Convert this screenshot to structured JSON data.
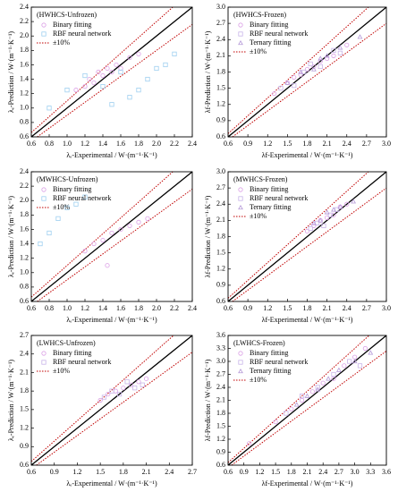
{
  "chart_data": [
    {
      "type": "scatter",
      "title": "(HWHCS-Unfrozen)",
      "xlabel": "λₑ-Experimental / W·(m⁻¹·K⁻¹)",
      "ylabel": "λₑ-Prediction / W·(m⁻¹·K⁻¹)",
      "xlim": [
        0.6,
        2.4
      ],
      "ylim": [
        0.6,
        2.4
      ],
      "xticks": [
        0.6,
        0.8,
        {
          "value": 1,
          "label": "1.0"
        },
        1.2,
        1.4,
        1.6,
        1.8,
        {
          "value": 2,
          "label": "2.0"
        },
        2.2,
        2.4
      ],
      "yticks": [
        0.6,
        0.8,
        {
          "value": 1,
          "label": "1.0"
        },
        1.2,
        1.4,
        1.6,
        1.8,
        {
          "value": 2,
          "label": "2.0"
        },
        2.2,
        2.4
      ],
      "band": {
        "name": "±10%",
        "value": 10,
        "color": "#c00000"
      },
      "series": [
        {
          "name": "Binary fitting",
          "color": "#dba0e6",
          "marker": "circle",
          "x": [
            1.1,
            1.2,
            1.25,
            1.3,
            1.35,
            1.4,
            1.45,
            1.5,
            1.55,
            1.6,
            1.7,
            1.8
          ],
          "y": [
            1.25,
            1.3,
            1.4,
            1.35,
            1.5,
            1.45,
            1.55,
            1.5,
            1.6,
            1.55,
            1.7,
            1.75
          ]
        },
        {
          "name": "RBF neural network",
          "color": "#9ecff0",
          "marker": "square",
          "x": [
            0.8,
            1.0,
            1.2,
            1.4,
            1.6,
            1.8,
            2.0,
            2.2,
            1.5,
            1.7,
            1.9,
            2.1
          ],
          "y": [
            1.0,
            1.25,
            1.45,
            1.3,
            1.5,
            1.25,
            1.55,
            1.75,
            1.05,
            1.15,
            1.4,
            1.6
          ]
        }
      ]
    },
    {
      "type": "scatter",
      "title": "(HWHCS-Frozen)",
      "xlabel": "λf-Experimental / W·(m⁻¹·K⁻¹)",
      "ylabel": "λf-Prediction / W·(m⁻¹·K⁻¹)",
      "xlim": [
        0.6,
        3.0
      ],
      "ylim": [
        0.6,
        3.0
      ],
      "xticks": [
        0.6,
        0.9,
        1.2,
        1.5,
        1.8,
        2.1,
        2.4,
        2.7,
        {
          "value": 3,
          "label": "3.0"
        }
      ],
      "yticks": [
        0.6,
        0.9,
        1.2,
        1.5,
        1.8,
        2.1,
        2.4,
        2.7,
        {
          "value": 3,
          "label": "3.0"
        }
      ],
      "band": {
        "name": "±10%",
        "value": 10,
        "color": "#c00000"
      },
      "series": [
        {
          "name": "Binary fitting",
          "color": "#dba0e6",
          "marker": "circle",
          "x": [
            1.3,
            1.5,
            1.6,
            1.7,
            1.8,
            1.9,
            2.0,
            2.1,
            2.2,
            2.4
          ],
          "y": [
            1.4,
            1.6,
            1.7,
            1.75,
            1.85,
            1.9,
            2.0,
            2.05,
            2.1,
            2.3
          ]
        },
        {
          "name": "RBF neural network",
          "color": "#c9b4e8",
          "marker": "square",
          "x": [
            1.4,
            1.6,
            1.75,
            1.85,
            2.0,
            2.2,
            2.3
          ],
          "y": [
            1.5,
            1.55,
            1.8,
            1.95,
            1.9,
            2.2,
            2.15
          ]
        },
        {
          "name": "Ternary fitting",
          "color": "#b59ad8",
          "marker": "triangle",
          "x": [
            1.5,
            1.7,
            1.9,
            2.0,
            2.1,
            2.3,
            2.6
          ],
          "y": [
            1.6,
            1.8,
            1.85,
            2.05,
            2.1,
            2.25,
            2.45
          ]
        }
      ]
    },
    {
      "type": "scatter",
      "title": "(MWHCS-Unfrozen)",
      "xlabel": "λₑ-Experimental / W·(m⁻¹·K⁻¹)",
      "ylabel": "λₑ-Prediction / W·(m⁻¹·K⁻¹)",
      "xlim": [
        0.6,
        2.4
      ],
      "ylim": [
        0.6,
        2.4
      ],
      "xticks": [
        0.6,
        0.8,
        {
          "value": 1,
          "label": "1.0"
        },
        1.2,
        1.4,
        1.6,
        1.8,
        {
          "value": 2,
          "label": "2.0"
        },
        2.2,
        2.4
      ],
      "yticks": [
        0.6,
        0.8,
        {
          "value": 1,
          "label": "1.0"
        },
        1.2,
        1.4,
        1.6,
        1.8,
        {
          "value": 2,
          "label": "2.0"
        },
        2.2,
        2.4
      ],
      "band": {
        "name": "±10%",
        "value": 10,
        "color": "#c00000"
      },
      "series": [
        {
          "name": "Binary fitting",
          "color": "#dba0e6",
          "marker": "circle",
          "x": [
            1.2,
            1.3,
            1.4,
            1.5,
            1.6,
            1.7,
            1.8,
            1.9,
            1.45
          ],
          "y": [
            1.3,
            1.4,
            1.45,
            1.55,
            1.6,
            1.65,
            1.7,
            1.75,
            1.1
          ]
        },
        {
          "name": "RBF neural network",
          "color": "#9ecff0",
          "marker": "square",
          "x": [
            0.7,
            0.8,
            0.9,
            1.0,
            1.1,
            1.2
          ],
          "y": [
            1.4,
            1.55,
            1.75,
            1.9,
            1.95,
            2.05
          ]
        }
      ]
    },
    {
      "type": "scatter",
      "title": "(MWHCS-Frozen)",
      "xlabel": "λf-Experimental / W·(m⁻¹·K⁻¹)",
      "ylabel": "λf-Prediction / W·(m⁻¹·K⁻¹)",
      "xlim": [
        0.6,
        3.0
      ],
      "ylim": [
        0.6,
        3.0
      ],
      "xticks": [
        0.6,
        0.9,
        1.2,
        1.5,
        1.8,
        2.1,
        2.4,
        2.7,
        {
          "value": 3,
          "label": "3.0"
        }
      ],
      "yticks": [
        0.6,
        0.9,
        1.2,
        1.5,
        1.8,
        2.1,
        2.4,
        2.7,
        {
          "value": 3,
          "label": "3.0"
        }
      ],
      "band": {
        "name": "±10%",
        "value": 10,
        "color": "#c00000"
      },
      "series": [
        {
          "name": "Binary fitting",
          "color": "#dba0e6",
          "marker": "circle",
          "x": [
            1.8,
            1.9,
            2.0,
            2.1,
            2.2,
            2.3,
            2.4
          ],
          "y": [
            1.9,
            2.0,
            2.1,
            2.15,
            2.2,
            2.35,
            2.4
          ]
        },
        {
          "name": "RBF neural network",
          "color": "#c9b4e8",
          "marker": "square",
          "x": [
            1.85,
            1.95,
            2.05,
            2.15,
            2.25
          ],
          "y": [
            1.95,
            2.05,
            2.0,
            2.2,
            2.3
          ]
        },
        {
          "name": "Ternary fitting",
          "color": "#b59ad8",
          "marker": "triangle",
          "x": [
            1.9,
            2.0,
            2.1,
            2.2,
            2.3,
            2.5
          ],
          "y": [
            2.05,
            2.1,
            2.25,
            2.3,
            2.35,
            2.45
          ]
        }
      ]
    },
    {
      "type": "scatter",
      "title": "(LWHCS-Unfrozen)",
      "xlabel": "λₑ-Experimental / W·(m⁻¹·K⁻¹)",
      "ylabel": "λₑ-Prediction / W·(m⁻¹·K⁻¹)",
      "xlim": [
        0.6,
        2.7
      ],
      "ylim": [
        0.6,
        2.7
      ],
      "xticks": [
        0.6,
        0.9,
        1.2,
        1.5,
        1.8,
        2.1,
        2.4,
        2.7
      ],
      "yticks": [
        0.6,
        0.9,
        1.2,
        1.5,
        1.8,
        2.1,
        2.4,
        2.7
      ],
      "band": {
        "name": "±10%",
        "value": 10,
        "color": "#c00000"
      },
      "series": [
        {
          "name": "Binary fitting",
          "color": "#dba0e6",
          "marker": "circle",
          "x": [
            1.5,
            1.6,
            1.7,
            1.8,
            1.9,
            2.0,
            2.1
          ],
          "y": [
            1.65,
            1.75,
            1.8,
            1.85,
            1.9,
            1.95,
            2.0
          ]
        },
        {
          "name": "RBF neural network",
          "color": "#c9b4e8",
          "marker": "square",
          "x": [
            1.55,
            1.65,
            1.75,
            1.85,
            1.95,
            2.05
          ],
          "y": [
            1.7,
            1.8,
            1.75,
            1.95,
            1.85,
            1.9
          ]
        }
      ]
    },
    {
      "type": "scatter",
      "title": "(LWHCS-Frozen)",
      "xlabel": "λf-Experimental / W·(m⁻¹·K⁻¹)",
      "ylabel": "λf-Prediction / W·(m⁻¹·K⁻¹)",
      "xlim": [
        0.6,
        3.6
      ],
      "ylim": [
        0.6,
        3.6
      ],
      "xticks": [
        0.6,
        0.9,
        1.2,
        1.5,
        1.8,
        2.1,
        2.4,
        2.7,
        {
          "value": 3,
          "label": "3.0"
        },
        3.3,
        3.6
      ],
      "yticks": [
        0.6,
        0.9,
        1.2,
        1.5,
        1.8,
        2.1,
        2.4,
        2.7,
        {
          "value": 3,
          "label": "3.0"
        },
        3.3,
        3.6
      ],
      "band": {
        "name": "±10%",
        "value": 10,
        "color": "#c00000"
      },
      "series": [
        {
          "name": "Binary fitting",
          "color": "#dba0e6",
          "marker": "circle",
          "x": [
            1.0,
            1.5,
            1.8,
            2.0,
            2.2,
            2.4,
            2.6,
            2.8,
            3.0,
            3.2
          ],
          "y": [
            1.1,
            1.6,
            1.9,
            2.1,
            2.3,
            2.5,
            2.6,
            2.9,
            3.1,
            3.3
          ]
        },
        {
          "name": "RBF neural network",
          "color": "#c9b4e8",
          "marker": "square",
          "x": [
            1.7,
            2.0,
            2.3,
            2.6,
            2.9,
            3.1
          ],
          "y": [
            1.8,
            2.2,
            2.4,
            2.7,
            3.0,
            2.9
          ]
        },
        {
          "name": "Ternary fitting",
          "color": "#b59ad8",
          "marker": "triangle",
          "x": [
            1.9,
            2.1,
            2.3,
            2.5,
            2.7,
            3.0,
            3.3
          ],
          "y": [
            2.0,
            2.2,
            2.35,
            2.6,
            2.8,
            3.0,
            3.2
          ]
        }
      ]
    }
  ]
}
